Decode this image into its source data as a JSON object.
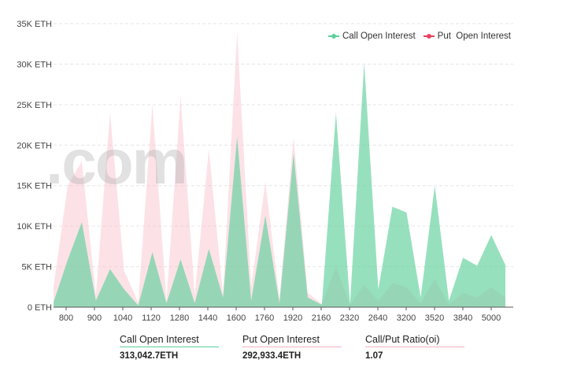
{
  "chart_data": {
    "type": "area",
    "y_unit": "ETH",
    "ylim": [
      0,
      35000
    ],
    "y_ticks": [
      "0 ETH",
      "5K ETH",
      "10K ETH",
      "15K ETH",
      "20K ETH",
      "25K ETH",
      "30K ETH",
      "35K ETH"
    ],
    "x_tick_labels": [
      "800",
      "900",
      "1040",
      "1120",
      "1280",
      "1440",
      "1600",
      "1760",
      "1920",
      "2160",
      "2320",
      "2640",
      "3200",
      "3520",
      "3840",
      "5000"
    ],
    "grid": true,
    "legend_position": "top-right",
    "series": [
      {
        "name": "Call Open Interest",
        "color": "#5fcf9b",
        "values": [
          600,
          5800,
          10500,
          800,
          4700,
          2200,
          200,
          6800,
          500,
          5900,
          500,
          7200,
          1200,
          21000,
          800,
          11300,
          500,
          19000,
          1200,
          300,
          24000,
          400,
          30200,
          2200,
          12400,
          11700,
          1200,
          15000,
          800,
          6100,
          5100,
          8900,
          5200
        ]
      },
      {
        "name": "Put  Open Interest",
        "color": "#f5b3c0",
        "values": [
          2500,
          15000,
          18000,
          1500,
          24000,
          4500,
          600,
          25000,
          800,
          26000,
          1500,
          19500,
          1500,
          34000,
          2500,
          15500,
          1000,
          21000,
          1800,
          400,
          5000,
          300,
          2800,
          800,
          3000,
          2500,
          500,
          3500,
          300,
          1800,
          1200,
          2500,
          1200
        ]
      }
    ]
  },
  "summary": [
    {
      "label": "Call Open Interest",
      "value": "313,042.7ETH",
      "color": "#5fcf9b"
    },
    {
      "label": "Put Open Interest",
      "value": "292,933.4ETH",
      "color": "#f5b3c0"
    },
    {
      "label": "Call/Put Ratio(oi)",
      "value": "1.07",
      "color": "#f5b3c0"
    }
  ],
  "watermark": ".com"
}
